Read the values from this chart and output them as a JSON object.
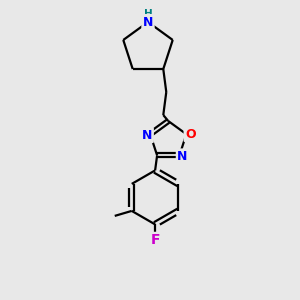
{
  "background_color": "#e8e8e8",
  "bond_color": "#000000",
  "atom_colors": {
    "N": "#0000ff",
    "O": "#ff0000",
    "F": "#cc00cc",
    "H": "#008080",
    "C": "#000000"
  },
  "figsize": [
    3.0,
    3.0
  ],
  "dpi": 100,
  "bond_lw": 1.6,
  "double_sep": 2.2,
  "font_size": 9
}
